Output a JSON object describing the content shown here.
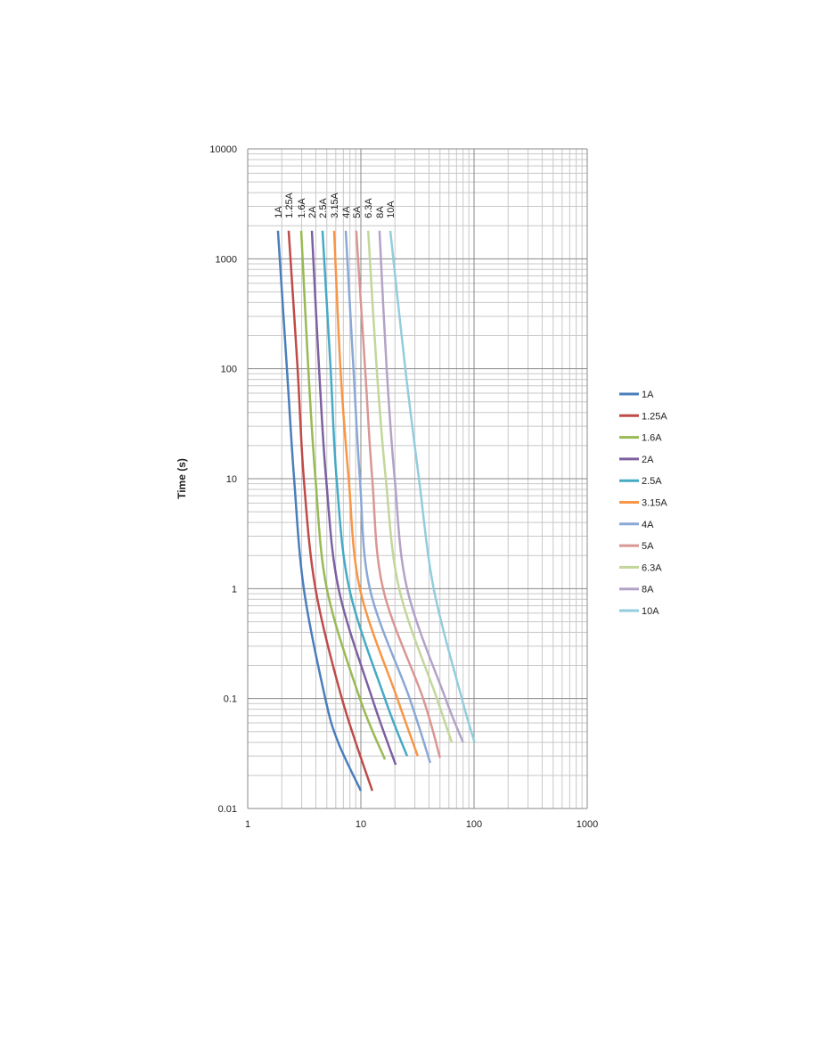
{
  "chart_data": {
    "type": "line",
    "y_label": "Time (s)",
    "xscale": "log",
    "yscale": "log",
    "xlim": [
      1,
      1000
    ],
    "ylim": [
      0.01,
      10000
    ],
    "xticks": [
      1,
      10,
      100,
      1000
    ],
    "yticks": [
      0.01,
      0.1,
      1,
      10,
      100,
      1000,
      10000
    ],
    "grid": true,
    "minor_grid": true,
    "legend": "right",
    "curve_labels": true,
    "series": [
      {
        "name": "1A",
        "color": "#4a7ebb",
        "x": [
          1.85,
          2.22,
          2.57,
          3.13,
          4.85,
          6.3,
          10
        ],
        "values": [
          1800,
          100,
          10,
          1,
          0.1,
          0.04,
          0.0145
        ]
      },
      {
        "name": "1.25A",
        "color": "#be4b48",
        "x": [
          2.3,
          2.76,
          3.13,
          3.97,
          6.8,
          12.6
        ],
        "values": [
          1800,
          100,
          10,
          1,
          0.1,
          0.0145
        ]
      },
      {
        "name": "1.6A",
        "color": "#98b954",
        "x": [
          2.97,
          3.43,
          3.97,
          5.0,
          9.8,
          16.3
        ],
        "values": [
          1800,
          100,
          10,
          1,
          0.1,
          0.028
        ]
      },
      {
        "name": "2A",
        "color": "#7d60a0",
        "x": [
          3.69,
          4.27,
          4.93,
          6.35,
          12.6,
          20.3
        ],
        "values": [
          1800,
          100,
          10,
          1,
          0.1,
          0.025
        ]
      },
      {
        "name": "2.5A",
        "color": "#46aac5",
        "x": [
          4.58,
          5.4,
          6.1,
          7.9,
          16.3,
          25.6
        ],
        "values": [
          1800,
          100,
          10,
          1,
          0.1,
          0.03
        ]
      },
      {
        "name": "3.15A",
        "color": "#f79646",
        "x": [
          5.8,
          6.6,
          7.8,
          9.8,
          21,
          31.8
        ],
        "values": [
          1800,
          100,
          10,
          1,
          0.1,
          0.03
        ]
      },
      {
        "name": "4A",
        "color": "#8aa8d5",
        "x": [
          7.35,
          8.6,
          9.8,
          12,
          27,
          41
        ],
        "values": [
          1800,
          100,
          10,
          1,
          0.1,
          0.026
        ]
      },
      {
        "name": "5A",
        "color": "#d99694",
        "x": [
          9.1,
          10.9,
          12.6,
          15.7,
          35.5,
          50
        ],
        "values": [
          1800,
          100,
          10,
          1,
          0.1,
          0.029
        ]
      },
      {
        "name": "6.3A",
        "color": "#c3d69b",
        "x": [
          11.6,
          13.8,
          16.6,
          21.8,
          47,
          63.5
        ],
        "values": [
          1800,
          100,
          10,
          1,
          0.1,
          0.04
        ]
      },
      {
        "name": "8A",
        "color": "#b3a2c7",
        "x": [
          14.6,
          16.9,
          19.9,
          25.6,
          56,
          80
        ],
        "values": [
          1800,
          100,
          10,
          1,
          0.1,
          0.04
        ]
      },
      {
        "name": "10A",
        "color": "#93cddd",
        "x": [
          18.2,
          24.7,
          32.6,
          44,
          78,
          101
        ],
        "values": [
          1800,
          100,
          10,
          1,
          0.1,
          0.04
        ]
      }
    ]
  }
}
